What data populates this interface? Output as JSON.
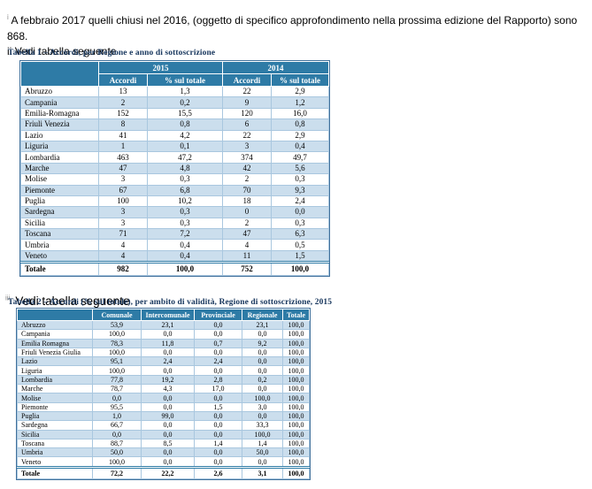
{
  "intro": {
    "marker": "i",
    "text": "A febbraio 2017 quelli chiusi nel 2016, (oggetto di specifico approfondimento nella prossima edizione del Rapporto) sono 868."
  },
  "note2": {
    "marker": "ii",
    "text": "Vedi tabella seguente"
  },
  "note3": {
    "marker": "iii",
    "text": "Vedi tabella seguente"
  },
  "table1": {
    "title": "Tabella 1 – Accordi, per Regione e anno di sottoscrizione",
    "year_headers": [
      "2015",
      "2014"
    ],
    "col_headers": [
      "Accordi",
      "% sul totale",
      "Accordi",
      "% sul totale"
    ],
    "rows": [
      [
        "Abruzzo",
        "13",
        "1,3",
        "22",
        "2,9"
      ],
      [
        "Campania",
        "2",
        "0,2",
        "9",
        "1,2"
      ],
      [
        "Emilia-Romagna",
        "152",
        "15,5",
        "120",
        "16,0"
      ],
      [
        "Friuli Venezia",
        "8",
        "0,8",
        "6",
        "0,8"
      ],
      [
        "Lazio",
        "41",
        "4,2",
        "22",
        "2,9"
      ],
      [
        "Liguria",
        "1",
        "0,1",
        "3",
        "0,4"
      ],
      [
        "Lombardia",
        "463",
        "47,2",
        "374",
        "49,7"
      ],
      [
        "Marche",
        "47",
        "4,8",
        "42",
        "5,6"
      ],
      [
        "Molise",
        "3",
        "0,3",
        "2",
        "0,3"
      ],
      [
        "Piemonte",
        "67",
        "6,8",
        "70",
        "9,3"
      ],
      [
        "Puglia",
        "100",
        "10,2",
        "18",
        "2,4"
      ],
      [
        "Sardegna",
        "3",
        "0,3",
        "0",
        "0,0"
      ],
      [
        "Sicilia",
        "3",
        "0,3",
        "2",
        "0,3"
      ],
      [
        "Toscana",
        "71",
        "7,2",
        "47",
        "6,3"
      ],
      [
        "Umbria",
        "4",
        "0,4",
        "4",
        "0,5"
      ],
      [
        "Veneto",
        "4",
        "0,4",
        "11",
        "1,5"
      ]
    ],
    "total": [
      "Totale",
      "982",
      "100,0",
      "752",
      "100,0"
    ]
  },
  "table2": {
    "title": "Tabella 2 – Accordi (% sul totale), per ambito di validità, Regione di sottoscrizione, 2015",
    "col_headers": [
      "Comunale",
      "Intercomunale",
      "Provinciale",
      "Regionale",
      "Totale"
    ],
    "rows": [
      [
        "Abruzzo",
        "53,9",
        "23,1",
        "0,0",
        "23,1",
        "100,0"
      ],
      [
        "Campania",
        "100,0",
        "0,0",
        "0,0",
        "0,0",
        "100,0"
      ],
      [
        "Emilia Romagna",
        "78,3",
        "11,8",
        "0,7",
        "9,2",
        "100,0"
      ],
      [
        "Friuli Venezia Giulia",
        "100,0",
        "0,0",
        "0,0",
        "0,0",
        "100,0"
      ],
      [
        "Lazio",
        "95,1",
        "2,4",
        "2,4",
        "0,0",
        "100,0"
      ],
      [
        "Liguria",
        "100,0",
        "0,0",
        "0,0",
        "0,0",
        "100,0"
      ],
      [
        "Lombardia",
        "77,8",
        "19,2",
        "2,8",
        "0,2",
        "100,0"
      ],
      [
        "Marche",
        "78,7",
        "4,3",
        "17,0",
        "0,0",
        "100,0"
      ],
      [
        "Molise",
        "0,0",
        "0,0",
        "0,0",
        "100,0",
        "100,0"
      ],
      [
        "Piemonte",
        "95,5",
        "0,0",
        "1,5",
        "3,0",
        "100,0"
      ],
      [
        "Puglia",
        "1,0",
        "99,0",
        "0,0",
        "0,0",
        "100,0"
      ],
      [
        "Sardegna",
        "66,7",
        "0,0",
        "0,0",
        "33,3",
        "100,0"
      ],
      [
        "Sicilia",
        "0,0",
        "0,0",
        "0,0",
        "100,0",
        "100,0"
      ],
      [
        "Toscana",
        "88,7",
        "8,5",
        "1,4",
        "1,4",
        "100,0"
      ],
      [
        "Umbria",
        "50,0",
        "0,0",
        "0,0",
        "50,0",
        "100,0"
      ],
      [
        "Veneto",
        "100,0",
        "0,0",
        "0,0",
        "0,0",
        "100,0"
      ]
    ],
    "total": [
      "Totale",
      "72,2",
      "22,2",
      "2,6",
      "3,1",
      "100,0"
    ]
  },
  "colors": {
    "header_bg": "#2E7BA6",
    "band_bg": "#CBDEED",
    "cell_border": "#A9C7DF",
    "outer_border": "#41719C",
    "title_color": "#17365D",
    "accent_double_line": "#2E7BA6"
  }
}
